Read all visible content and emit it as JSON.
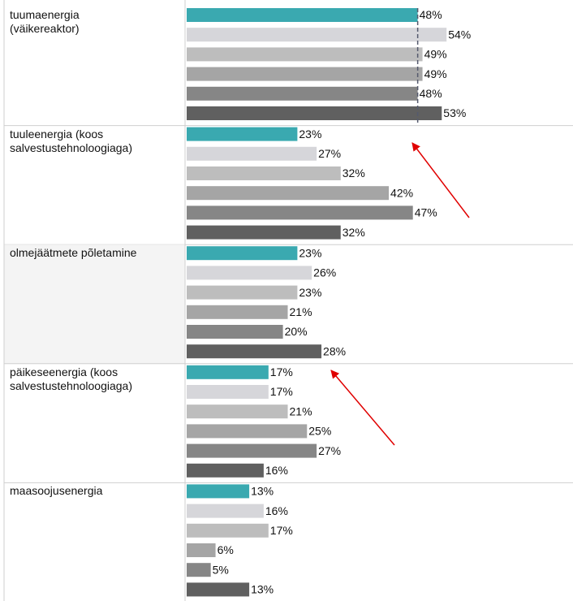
{
  "chart_data": {
    "type": "bar",
    "categories": [
      "tuumaenergia\n(väikereaktor)",
      "tuuleenergia (koos\nsalvestustehnoloogiaga)",
      "olmejäätmete põletamine",
      "päikeseenergia (koos\nsalvestustehnoloogiaga)",
      "maasoojusenergia"
    ],
    "series": [
      {
        "color": "#3aa9b0",
        "values": [
          48,
          23,
          23,
          17,
          13
        ],
        "value_labels": [
          "48%",
          "23%",
          "23%",
          "17%",
          "13%"
        ]
      },
      {
        "color": "#d6d6da",
        "values": [
          54,
          27,
          26,
          17,
          16
        ],
        "value_labels": [
          "54%",
          "27%",
          "26%",
          "17%",
          "16%"
        ]
      },
      {
        "color": "#bdbdbd",
        "values": [
          49,
          32,
          23,
          21,
          17
        ],
        "value_labels": [
          "49%",
          "32%",
          "23%",
          "21%",
          "17%"
        ]
      },
      {
        "color": "#a5a5a5",
        "values": [
          49,
          42,
          21,
          25,
          6
        ],
        "value_labels": [
          "49%",
          "42%",
          "21%",
          "25%",
          "6%"
        ]
      },
      {
        "color": "#868686",
        "values": [
          48,
          47,
          20,
          27,
          5
        ],
        "value_labels": [
          "48%",
          "47%",
          "20%",
          "27%",
          "5%"
        ]
      },
      {
        "color": "#606060",
        "values": [
          53,
          32,
          28,
          16,
          13
        ],
        "value_labels": [
          "53%",
          "32%",
          "28%",
          "16%",
          "13%"
        ]
      }
    ],
    "reference_line": {
      "value": 48
    }
  }
}
